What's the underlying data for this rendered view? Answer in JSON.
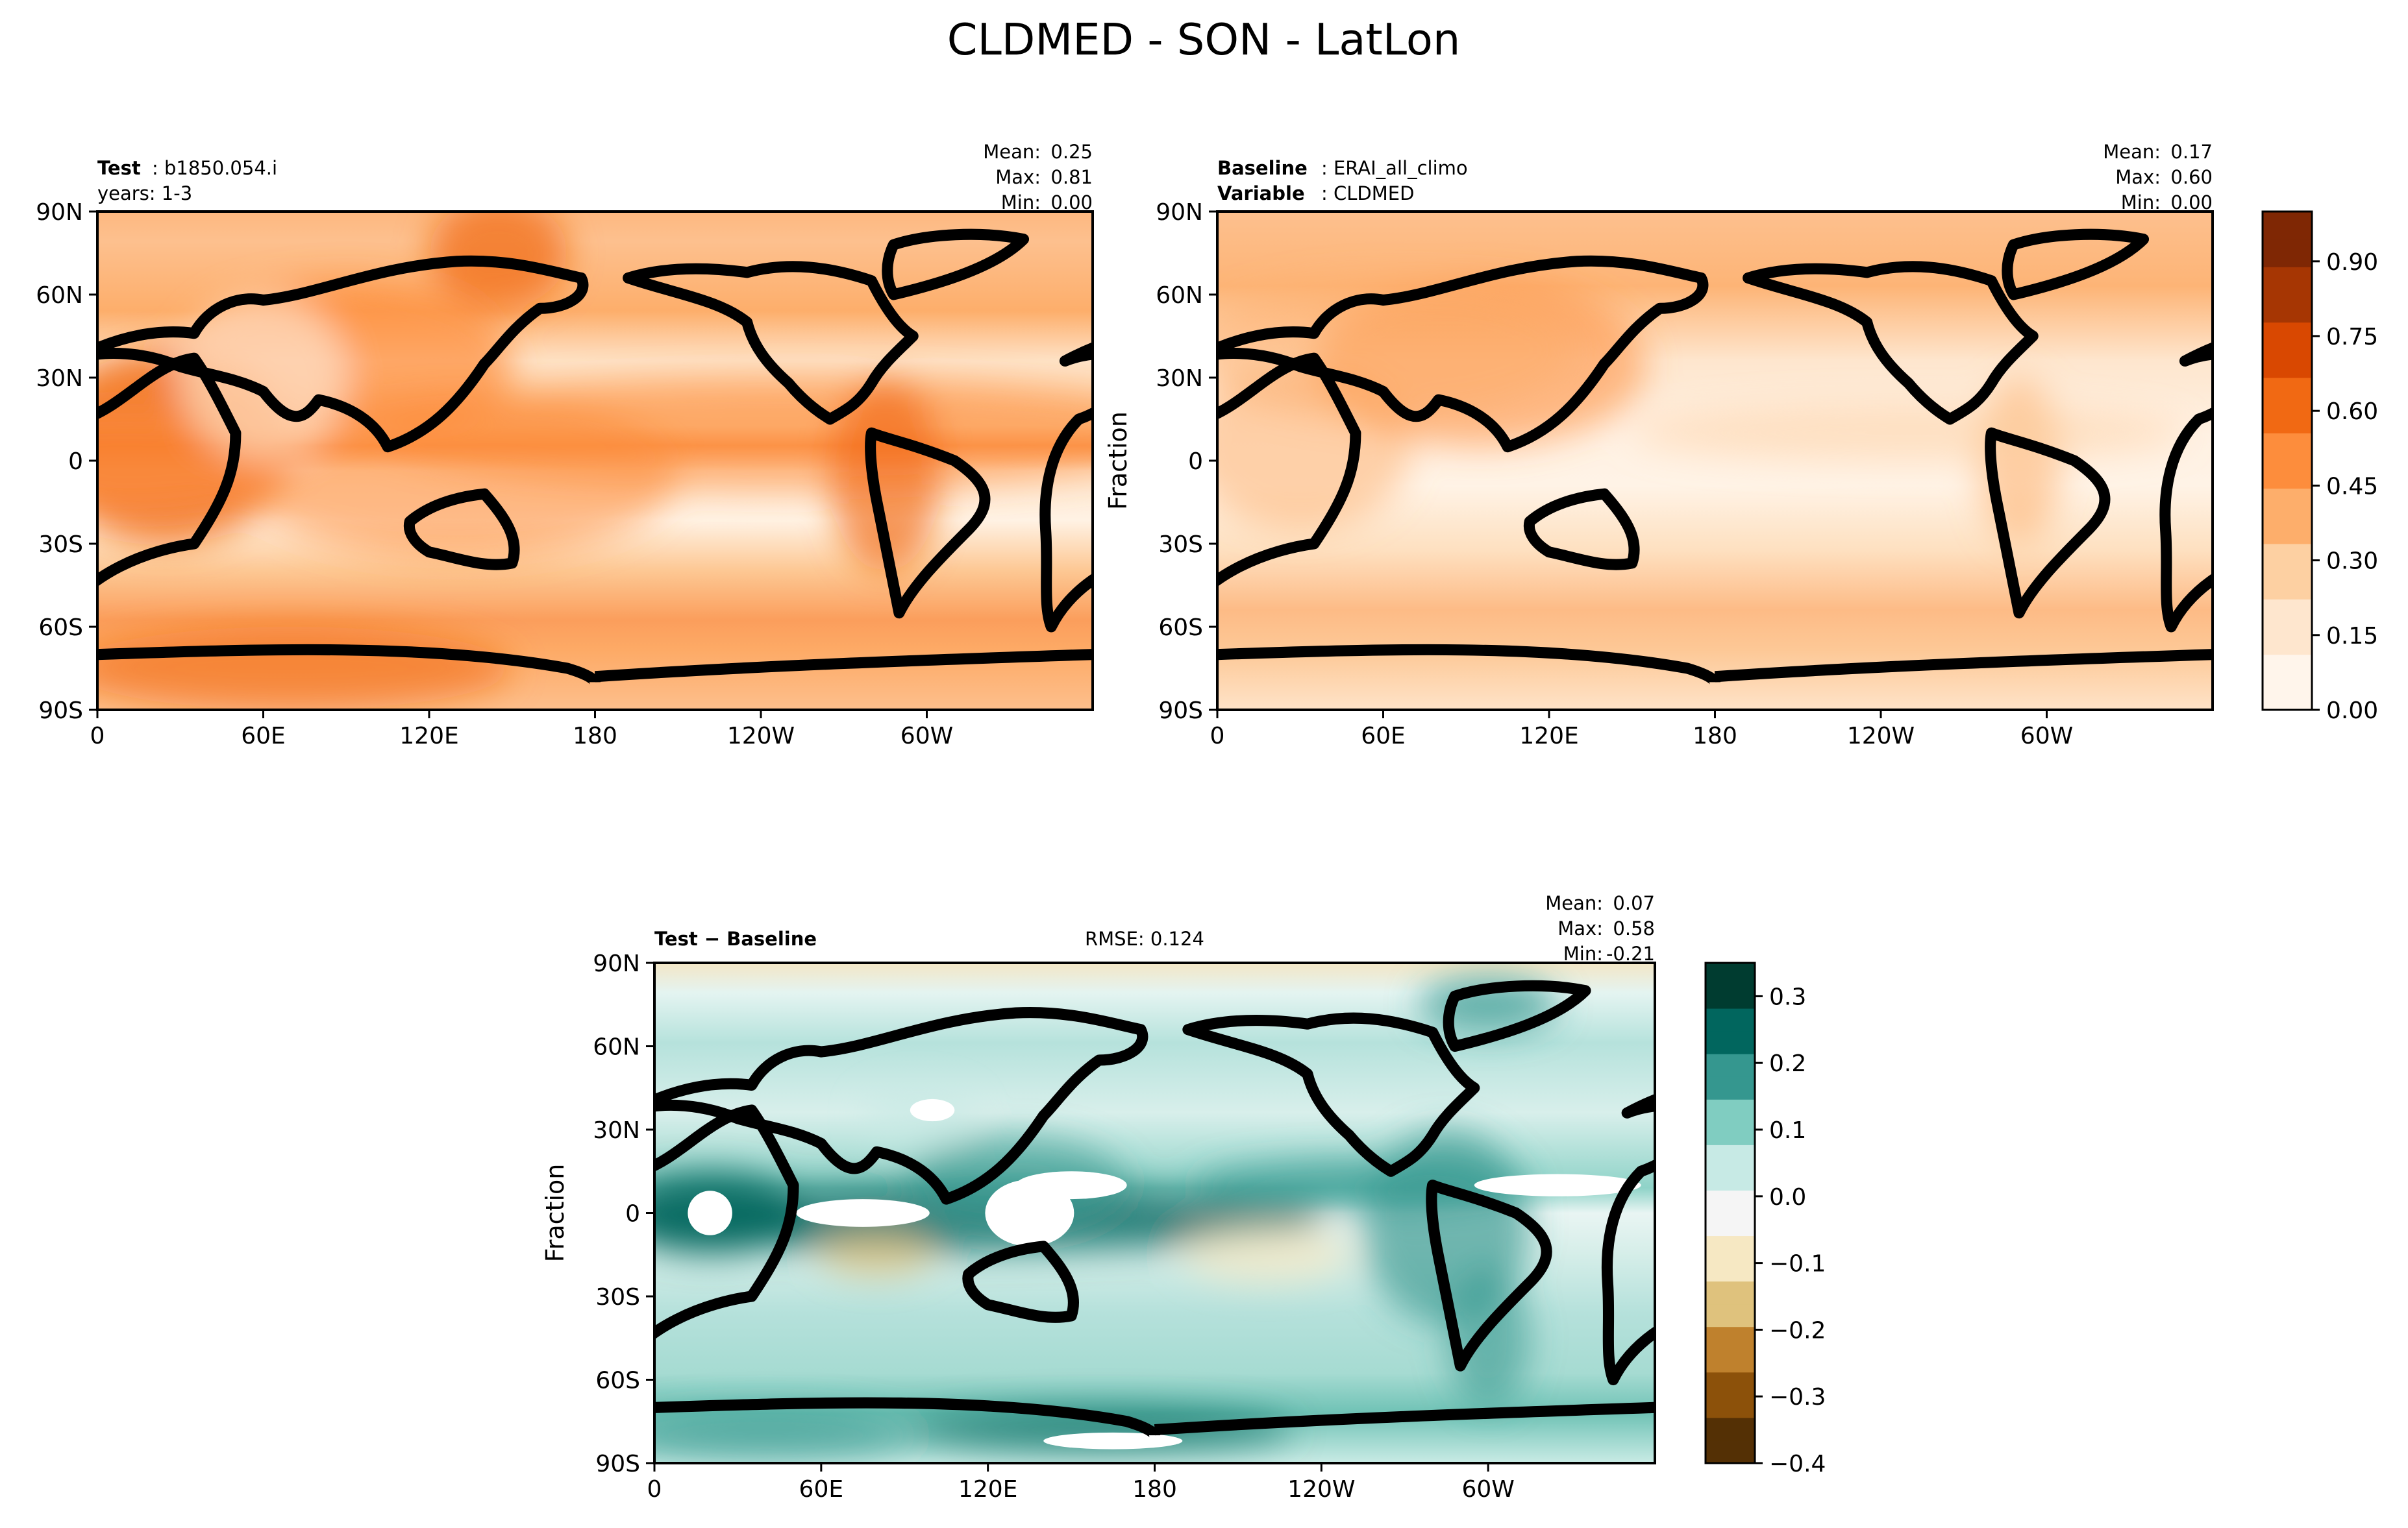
{
  "figure": {
    "title": "CLDMED - SON - LatLon"
  },
  "lon_ticks": [
    "0",
    "60E",
    "120E",
    "180",
    "120W",
    "60W"
  ],
  "lat_ticks": [
    "90N",
    "60N",
    "30N",
    "0",
    "30S",
    "60S",
    "90S"
  ],
  "panels": {
    "test": {
      "line1_bold": "Test",
      "line1_text": ": b1850.054.i",
      "line2_text": "years: 1-3",
      "stats": {
        "mean_label": "Mean:",
        "mean": "0.25",
        "max_label": "Max:",
        "max": "0.81",
        "min_label": "Min:",
        "min": "0.00"
      }
    },
    "baseline": {
      "line1_bold": "Baseline",
      "line1_text": ": ERAI_all_climo",
      "line2_bold": "Variable",
      "line2_text": ": CLDMED",
      "ylabel": "Fraction",
      "stats": {
        "mean_label": "Mean:",
        "mean": "0.17",
        "max_label": "Max:",
        "max": "0.60",
        "min_label": "Min:",
        "min": "0.00"
      }
    },
    "diff": {
      "title_bold": "Test − Baseline",
      "rmse": "RMSE: 0.124",
      "ylabel": "Fraction",
      "stats": {
        "mean_label": "Mean:",
        "mean": "0.07",
        "max_label": "Max:",
        "max": "0.58",
        "min_label": "Min:",
        "min": "-0.21"
      }
    }
  },
  "colorbars": {
    "main": {
      "ticks": [
        "0.00",
        "0.15",
        "0.30",
        "0.45",
        "0.60",
        "0.75",
        "0.90"
      ],
      "range": [
        0,
        1
      ],
      "colors": [
        "#fff5eb",
        "#fee6ce",
        "#fdd0a2",
        "#fdae6b",
        "#fd8d3c",
        "#f16913",
        "#d94801",
        "#a63603",
        "#7f2704"
      ]
    },
    "diff": {
      "ticks": [
        "−0.4",
        "−0.3",
        "−0.2",
        "−0.1",
        "0.0",
        "0.1",
        "0.2",
        "0.3"
      ],
      "range": [
        -0.4,
        0.35
      ],
      "colors": [
        "#543005",
        "#8c510a",
        "#bf812d",
        "#dfc27d",
        "#f6e8c3",
        "#f5f5f5",
        "#c7eae5",
        "#80cdc1",
        "#35978f",
        "#01665e",
        "#003c30"
      ]
    }
  },
  "chart_data": [
    {
      "type": "heatmap",
      "title": "Test: b1850.054.i",
      "xlabel": "",
      "ylabel": "",
      "xlim": [
        0,
        360
      ],
      "ylim": [
        -90,
        90
      ],
      "x_ticks": [
        "0",
        "60E",
        "120E",
        "180",
        "120W",
        "60W"
      ],
      "y_ticks": [
        "90N",
        "60N",
        "30N",
        "0",
        "30S",
        "60S",
        "90S"
      ],
      "mean": 0.25,
      "max": 0.81,
      "min": 0.0,
      "colorbar_range": [
        0,
        1
      ]
    },
    {
      "type": "heatmap",
      "title": "Baseline: ERAI_all_climo",
      "xlabel": "",
      "ylabel": "Fraction",
      "xlim": [
        0,
        360
      ],
      "ylim": [
        -90,
        90
      ],
      "x_ticks": [
        "0",
        "60E",
        "120E",
        "180",
        "120W",
        "60W"
      ],
      "y_ticks": [
        "90N",
        "60N",
        "30N",
        "0",
        "30S",
        "60S",
        "90S"
      ],
      "mean": 0.17,
      "max": 0.6,
      "min": 0.0,
      "colorbar_range": [
        0,
        1
      ]
    },
    {
      "type": "heatmap",
      "title": "Test − Baseline",
      "xlabel": "",
      "ylabel": "Fraction",
      "xlim": [
        0,
        360
      ],
      "ylim": [
        -90,
        90
      ],
      "x_ticks": [
        "0",
        "60E",
        "120E",
        "180",
        "120W",
        "60W"
      ],
      "y_ticks": [
        "90N",
        "60N",
        "30N",
        "0",
        "30S",
        "60S",
        "90S"
      ],
      "mean": 0.07,
      "max": 0.58,
      "min": -0.21,
      "rmse": 0.124,
      "colorbar_range": [
        -0.4,
        0.35
      ]
    }
  ]
}
